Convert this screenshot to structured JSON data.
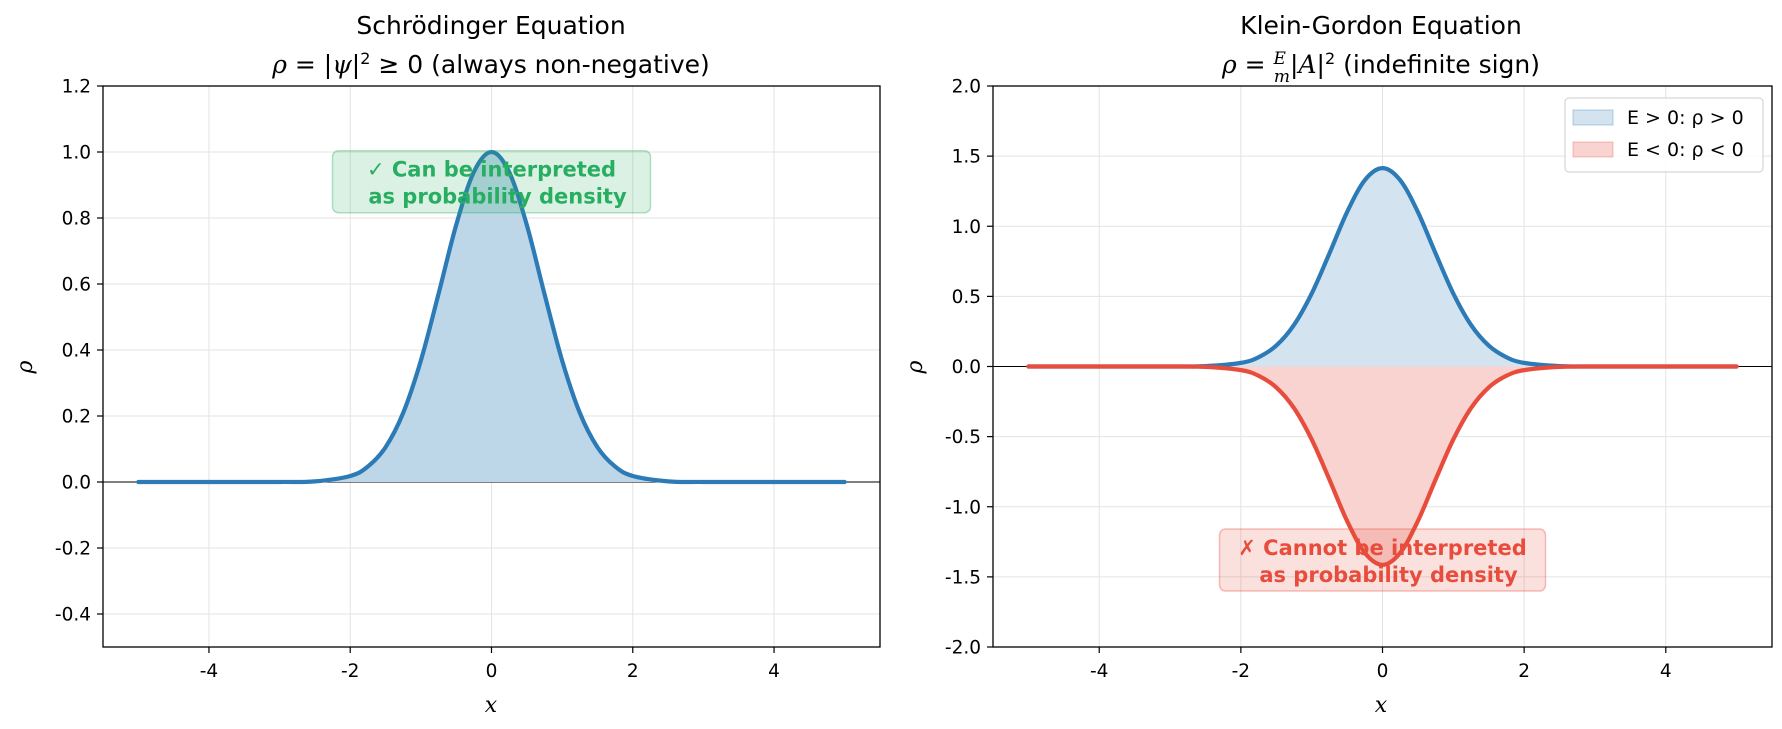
{
  "chart_data": [
    {
      "type": "area",
      "title": "Schrödinger Equation",
      "subtitle": "ρ = |ψ|² ≥ 0 (always non-negative)",
      "xlabel": "x",
      "ylabel": "ρ",
      "xlim": [
        -5.5,
        5.5
      ],
      "ylim": [
        -0.5,
        1.2
      ],
      "xticks": [
        -4,
        -2,
        0,
        2,
        4
      ],
      "yticks": [
        -0.4,
        -0.2,
        0.0,
        0.2,
        0.4,
        0.6,
        0.8,
        1.0,
        1.2
      ],
      "grid": true,
      "x": [
        -5.0,
        -4.0,
        -3.0,
        -2.5,
        -2.0,
        -1.75,
        -1.5,
        -1.25,
        -1.0,
        -0.75,
        -0.5,
        -0.25,
        0.0,
        0.25,
        0.5,
        0.75,
        1.0,
        1.25,
        1.5,
        1.75,
        2.0,
        2.5,
        3.0,
        4.0,
        5.0
      ],
      "series": [
        {
          "values": [
            0.0,
            0.0,
            0.0001,
            0.0019,
            0.0183,
            0.0468,
            0.1054,
            0.2096,
            0.3679,
            0.5698,
            0.7788,
            0.9394,
            1.0,
            0.9394,
            0.7788,
            0.5698,
            0.3679,
            0.2096,
            0.1054,
            0.0468,
            0.0183,
            0.0019,
            0.0001,
            0.0,
            0.0
          ],
          "color": "#2c7bb6",
          "fill": "#bdd7e8"
        }
      ],
      "annotation": {
        "text_line1": "✓ Can be interpreted",
        "text_line2": "as probability density",
        "x": 0,
        "y": 0.91,
        "color": "#27ae60"
      }
    },
    {
      "type": "area",
      "title": "Klein-Gordon Equation",
      "subtitle": "ρ = (E/m)|A|² (indefinite sign)",
      "xlabel": "x",
      "ylabel": "ρ",
      "xlim": [
        -5.5,
        5.5
      ],
      "ylim": [
        -2.0,
        2.0
      ],
      "xticks": [
        -4,
        -2,
        0,
        2,
        4
      ],
      "yticks": [
        -2.0,
        -1.5,
        -1.0,
        -0.5,
        0.0,
        0.5,
        1.0,
        1.5,
        2.0
      ],
      "grid": true,
      "legend_position": "top-right",
      "x": [
        -5.0,
        -4.0,
        -3.0,
        -2.5,
        -2.0,
        -1.75,
        -1.5,
        -1.25,
        -1.0,
        -0.75,
        -0.5,
        -0.25,
        0.0,
        0.25,
        0.5,
        0.75,
        1.0,
        1.25,
        1.5,
        1.75,
        2.0,
        2.5,
        3.0,
        4.0,
        5.0
      ],
      "series": [
        {
          "name": "E > 0: ρ > 0",
          "values": [
            0.0,
            0.0,
            0.0002,
            0.0027,
            0.0259,
            0.0662,
            0.1491,
            0.2964,
            0.5203,
            0.8058,
            1.1014,
            1.3285,
            1.4142,
            1.3285,
            1.1014,
            0.8058,
            0.5203,
            0.2964,
            0.1491,
            0.0662,
            0.0259,
            0.0027,
            0.0002,
            0.0,
            0.0
          ],
          "color": "#2c7bb6",
          "fill": "#d3e4f0"
        },
        {
          "name": "E < 0: ρ < 0",
          "values": [
            0.0,
            0.0,
            -0.0002,
            -0.0027,
            -0.0259,
            -0.0662,
            -0.1491,
            -0.2964,
            -0.5203,
            -0.8058,
            -1.1014,
            -1.3285,
            -1.4142,
            -1.3285,
            -1.1014,
            -0.8058,
            -0.5203,
            -0.2964,
            -0.1491,
            -0.0662,
            -0.0259,
            -0.0027,
            -0.0002,
            0.0,
            0.0
          ],
          "color": "#e74c3c",
          "fill": "#f8d3d0"
        }
      ],
      "annotation": {
        "text_line1": "✗ Cannot be interpreted",
        "text_line2": "as probability density",
        "x": 0,
        "y": -1.38,
        "color": "#e74c3c"
      }
    }
  ]
}
